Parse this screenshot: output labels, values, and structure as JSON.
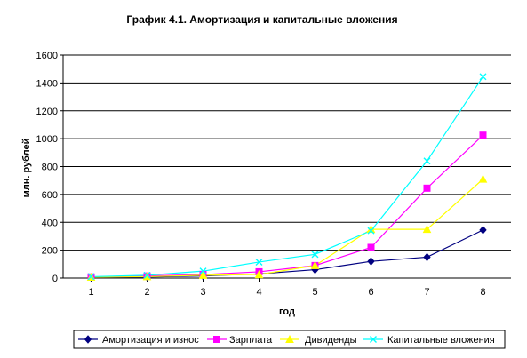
{
  "chart_data": {
    "type": "line",
    "title": "График 4.1.   Амортизация и капитальные вложения",
    "xlabel": "год",
    "ylabel": "млн. рублей",
    "ylim": [
      0,
      1600
    ],
    "yticks": [
      0,
      200,
      400,
      600,
      800,
      1000,
      1200,
      1400,
      1600
    ],
    "x": [
      1,
      2,
      3,
      4,
      5,
      6,
      7,
      8
    ],
    "grid": "horizontal",
    "legend_position": "bottom",
    "series": [
      {
        "name": "Амортизация и износ",
        "color": "#000080",
        "marker": "diamond",
        "values": [
          5,
          8,
          15,
          30,
          60,
          120,
          150,
          345
        ]
      },
      {
        "name": "Зарплата",
        "color": "#FF00FF",
        "marker": "square",
        "values": [
          8,
          15,
          25,
          45,
          90,
          220,
          645,
          1025
        ]
      },
      {
        "name": "Дивиденды",
        "color": "#FFFF00",
        "marker": "triangle",
        "values": [
          6,
          10,
          20,
          25,
          90,
          350,
          350,
          710
        ]
      },
      {
        "name": "Капитальные вложения",
        "color": "#00FFFF",
        "marker": "x",
        "values": [
          10,
          20,
          50,
          115,
          170,
          340,
          840,
          1445
        ]
      }
    ]
  }
}
